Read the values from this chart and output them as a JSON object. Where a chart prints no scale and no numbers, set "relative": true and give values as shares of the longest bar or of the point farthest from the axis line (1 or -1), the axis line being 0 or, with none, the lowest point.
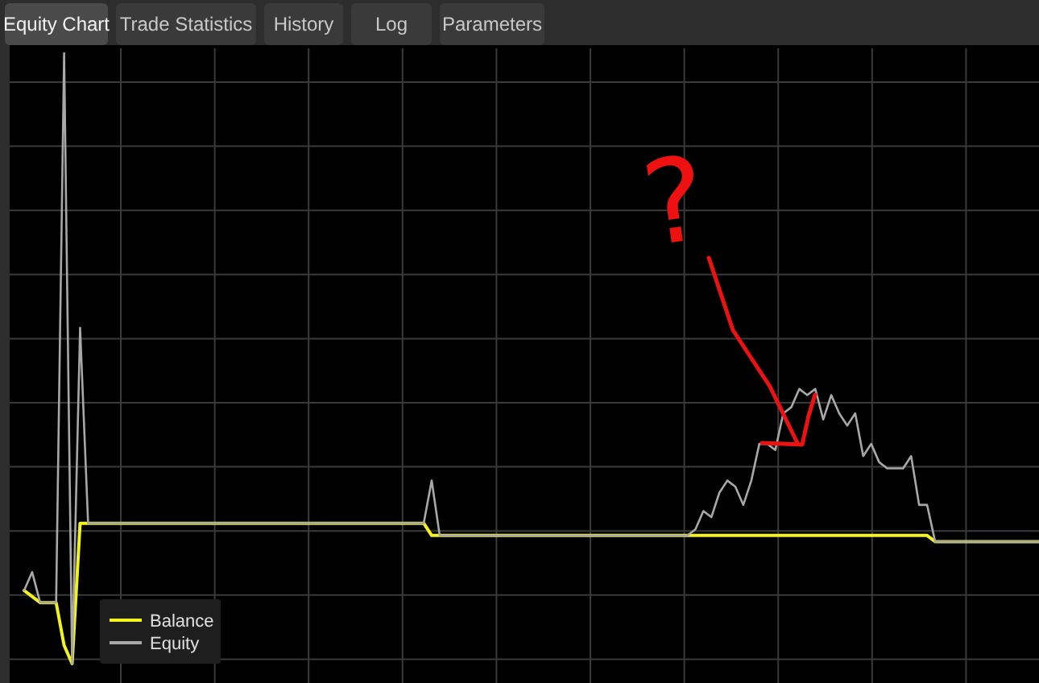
{
  "chart_data": {
    "type": "line",
    "relative": true,
    "grid": true,
    "legend": "bottom left",
    "categories": [
      null,
      null,
      null,
      null,
      null,
      null,
      null,
      null,
      null,
      null,
      null,
      null,
      null,
      null,
      null,
      null,
      null,
      null,
      null,
      null,
      null,
      null,
      null,
      null,
      null,
      null,
      null,
      null,
      null,
      null,
      null,
      null,
      null,
      null,
      null,
      null,
      null,
      null,
      null,
      null,
      null,
      null,
      null,
      null,
      null,
      null,
      null,
      null,
      null,
      null,
      null,
      null,
      null,
      null,
      null,
      null,
      null,
      null,
      null,
      null,
      null,
      null,
      null,
      null,
      null,
      null,
      null,
      null,
      null,
      null,
      null,
      null,
      null,
      null,
      null,
      null,
      null,
      null,
      null,
      null,
      null,
      null,
      null,
      null,
      null,
      null,
      null,
      null,
      null,
      null,
      null,
      null,
      null,
      null,
      null,
      null,
      null,
      null,
      null,
      null,
      null,
      null,
      null,
      null,
      null,
      null,
      null,
      null,
      null,
      null,
      null,
      null,
      null,
      null,
      null,
      null,
      null,
      null,
      null,
      null,
      null,
      null,
      null,
      null,
      null,
      null,
      null,
      null
    ],
    "series": [
      {
        "name": "Balance",
        "color": "#f2f21e",
        "values": [
          0.12,
          0.11,
          0.1,
          0.1,
          0.1,
          0.03,
          0,
          0.23,
          0.23,
          0.23,
          0.23,
          0.23,
          0.23,
          0.23,
          0.23,
          0.23,
          0.23,
          0.23,
          0.23,
          0.23,
          0.23,
          0.23,
          0.23,
          0.23,
          0.23,
          0.23,
          0.23,
          0.23,
          0.23,
          0.23,
          0.23,
          0.23,
          0.23,
          0.23,
          0.23,
          0.23,
          0.23,
          0.23,
          0.23,
          0.23,
          0.23,
          0.23,
          0.23,
          0.23,
          0.23,
          0.23,
          0.23,
          0.23,
          0.23,
          0.23,
          0.23,
          0.21,
          0.21,
          0.21,
          0.21,
          0.21,
          0.21,
          0.21,
          0.21,
          0.21,
          0.21,
          0.21,
          0.21,
          0.21,
          0.21,
          0.21,
          0.21,
          0.21,
          0.21,
          0.21,
          0.21,
          0.21,
          0.21,
          0.21,
          0.21,
          0.21,
          0.21,
          0.21,
          0.21,
          0.21,
          0.21,
          0.21,
          0.21,
          0.21,
          0.21,
          0.21,
          0.21,
          0.21,
          0.21,
          0.21,
          0.21,
          0.21,
          0.21,
          0.21,
          0.21,
          0.21,
          0.21,
          0.21,
          0.21,
          0.21,
          0.21,
          0.21,
          0.21,
          0.21,
          0.21,
          0.21,
          0.21,
          0.21,
          0.21,
          0.21,
          0.21,
          0.21,
          0.21,
          0.21,
          0.2,
          0.2,
          0.2,
          0.2,
          0.2,
          0.2,
          0.2,
          0.2,
          0.2,
          0.2,
          0.2,
          0.2,
          0.2,
          0.2
        ]
      },
      {
        "name": "Equity",
        "color": "#a8a8a8",
        "values": [
          0.12,
          0.15,
          0.1,
          0.1,
          0.1,
          1.0,
          0,
          0.55,
          0.23,
          0.23,
          0.23,
          0.23,
          0.23,
          0.23,
          0.23,
          0.23,
          0.23,
          0.23,
          0.23,
          0.23,
          0.23,
          0.23,
          0.23,
          0.23,
          0.23,
          0.23,
          0.23,
          0.23,
          0.23,
          0.23,
          0.23,
          0.23,
          0.23,
          0.23,
          0.23,
          0.23,
          0.23,
          0.23,
          0.23,
          0.23,
          0.23,
          0.23,
          0.23,
          0.23,
          0.23,
          0.23,
          0.23,
          0.23,
          0.23,
          0.23,
          0.23,
          0.3,
          0.21,
          0.21,
          0.21,
          0.21,
          0.21,
          0.21,
          0.21,
          0.21,
          0.21,
          0.21,
          0.21,
          0.21,
          0.21,
          0.21,
          0.21,
          0.21,
          0.21,
          0.21,
          0.21,
          0.21,
          0.21,
          0.21,
          0.21,
          0.21,
          0.21,
          0.21,
          0.21,
          0.21,
          0.21,
          0.21,
          0.21,
          0.21,
          0.22,
          0.25,
          0.24,
          0.28,
          0.3,
          0.29,
          0.26,
          0.3,
          0.36,
          0.36,
          0.35,
          0.41,
          0.42,
          0.45,
          0.44,
          0.45,
          0.4,
          0.44,
          0.41,
          0.39,
          0.41,
          0.34,
          0.36,
          0.33,
          0.32,
          0.32,
          0.32,
          0.34,
          0.26,
          0.26,
          0.2,
          0.2,
          0.2,
          0.2,
          0.2,
          0.2,
          0.2,
          0.2,
          0.2,
          0.2,
          0.2,
          0.2,
          0.2,
          0.2
        ]
      }
    ],
    "annotations": [
      "Equity Chart",
      "Trade Statistics",
      "History",
      "Log",
      "Parameters",
      "?"
    ]
  }
}
